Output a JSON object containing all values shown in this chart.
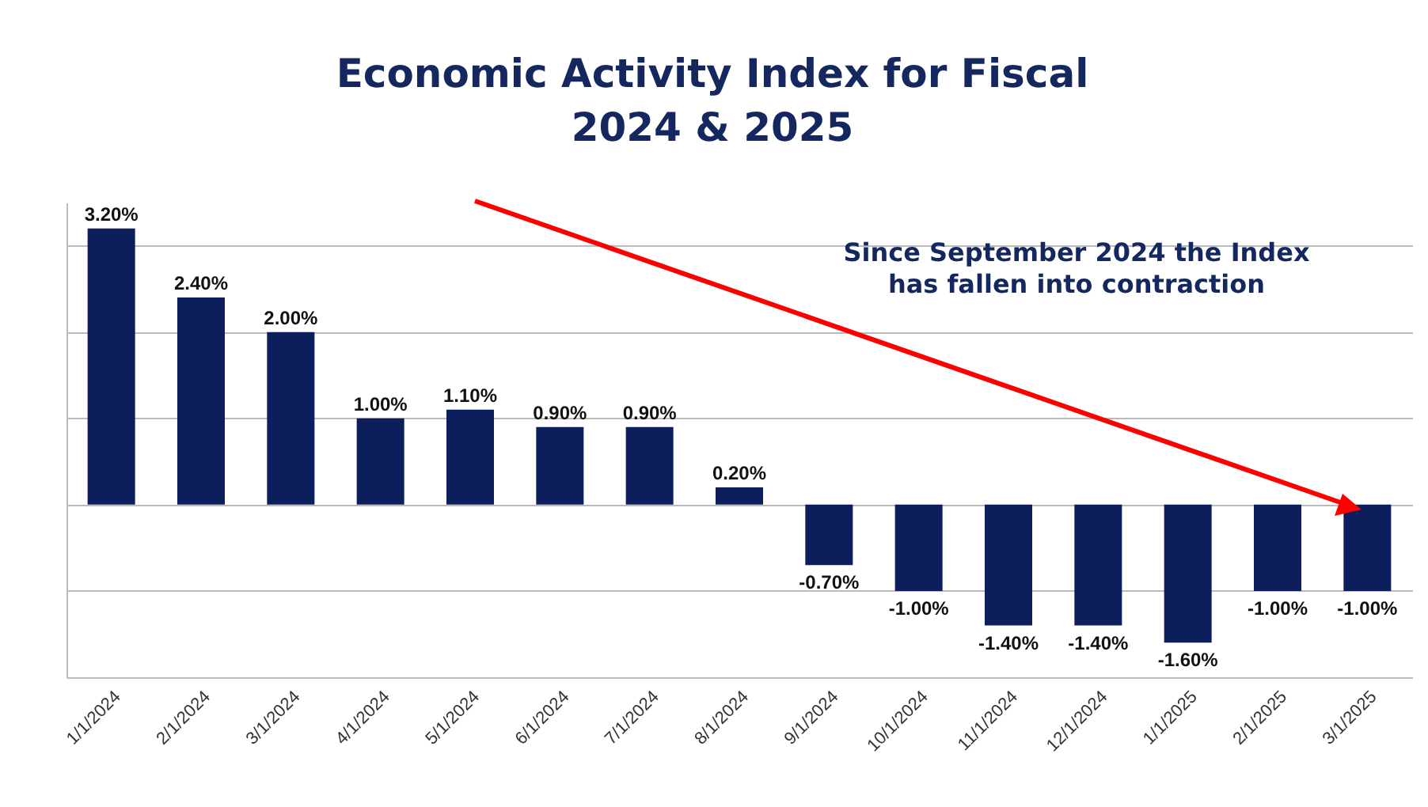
{
  "chart_data": {
    "type": "bar",
    "title": "Economic Activity Index for Fiscal 2024 & 2025",
    "categories": [
      "1/1/2024",
      "2/1/2024",
      "3/1/2024",
      "4/1/2024",
      "5/1/2024",
      "6/1/2024",
      "7/1/2024",
      "8/1/2024",
      "9/1/2024",
      "10/1/2024",
      "11/1/2024",
      "12/1/2024",
      "1/1/2025",
      "2/1/2025",
      "3/1/2025"
    ],
    "values": [
      3.2,
      2.4,
      2.0,
      1.0,
      1.1,
      0.9,
      0.9,
      0.2,
      -0.7,
      -1.0,
      -1.4,
      -1.4,
      -1.6,
      -1.0,
      -1.0
    ],
    "value_labels": [
      "3.20%",
      "2.40%",
      "2.00%",
      "1.00%",
      "1.10%",
      "0.90%",
      "0.90%",
      "0.20%",
      "-0.70%",
      "-1.00%",
      "-1.40%",
      "-1.40%",
      "-1.60%",
      "-1.00%",
      "-1.00%"
    ],
    "color": "#0c1f5c",
    "ylim": [
      -2,
      3.5
    ],
    "yticks": [
      {
        "value": -2,
        "label": null
      },
      {
        "value": -1,
        "label": null
      },
      {
        "value": 0,
        "label": null
      },
      {
        "value": 1,
        "label": null
      },
      {
        "value": 2,
        "label": null
      },
      {
        "value": 3,
        "label": null
      }
    ],
    "grid": "y",
    "tick_labels": "x",
    "annotations": [
      "Since September 2024 the Index has fallen into contraction"
    ]
  }
}
